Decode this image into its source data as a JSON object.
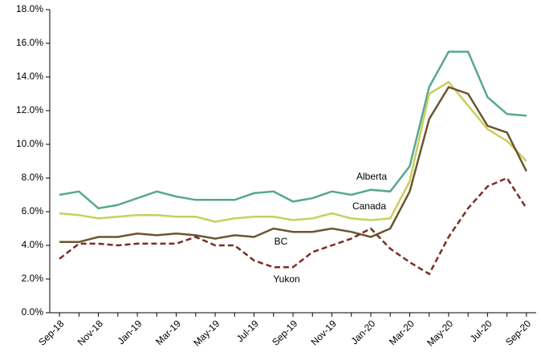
{
  "chart_data": {
    "type": "line",
    "categories": [
      "Sep-18",
      null,
      "Nov-18",
      null,
      "Jan-19",
      null,
      "Mar-19",
      null,
      "May-19",
      null,
      "Jul-19",
      null,
      "Sep-19",
      null,
      "Nov-19",
      null,
      "Jan-20",
      null,
      "Mar-20",
      null,
      "May-20",
      null,
      "Jul-20",
      null,
      "Sep-20"
    ],
    "ylim": [
      0,
      18
    ],
    "yticks": [
      {
        "value": 0,
        "label": "0.0%"
      },
      {
        "value": 2,
        "label": "2.0%"
      },
      {
        "value": 4,
        "label": "4.0%"
      },
      {
        "value": 6,
        "label": "6.0%"
      },
      {
        "value": 8,
        "label": "8.0%"
      },
      {
        "value": 10,
        "label": "10.0%"
      },
      {
        "value": 12,
        "label": "12.0%"
      },
      {
        "value": 14,
        "label": "14.0%"
      },
      {
        "value": 16,
        "label": "16.0%"
      },
      {
        "value": 18,
        "label": "18.0%"
      }
    ],
    "series": [
      {
        "name": "Alberta",
        "color": "#55a893",
        "dashed": false,
        "values": [
          7.0,
          7.2,
          6.2,
          6.4,
          6.8,
          7.2,
          6.9,
          6.7,
          6.7,
          6.7,
          7.1,
          7.2,
          6.6,
          6.8,
          7.2,
          7.0,
          7.3,
          7.2,
          8.7,
          13.4,
          15.5,
          15.5,
          12.8,
          11.8,
          11.7
        ]
      },
      {
        "name": "Canada",
        "color": "#c8cf5c",
        "dashed": false,
        "values": [
          5.9,
          5.8,
          5.6,
          5.7,
          5.8,
          5.8,
          5.7,
          5.7,
          5.4,
          5.6,
          5.7,
          5.7,
          5.5,
          5.6,
          5.9,
          5.6,
          5.5,
          5.6,
          7.8,
          13.0,
          13.7,
          12.3,
          10.9,
          10.2,
          9.0
        ]
      },
      {
        "name": "BC",
        "color": "#6b5530",
        "dashed": false,
        "values": [
          4.2,
          4.2,
          4.5,
          4.5,
          4.7,
          4.6,
          4.7,
          4.6,
          4.4,
          4.6,
          4.5,
          5.0,
          4.8,
          4.8,
          5.0,
          4.8,
          4.5,
          5.0,
          7.2,
          11.5,
          13.4,
          13.0,
          11.1,
          10.7,
          8.4
        ]
      },
      {
        "name": "Yukon",
        "color": "#7b2d26",
        "dashed": true,
        "values": [
          3.2,
          4.1,
          4.1,
          4.0,
          4.1,
          4.1,
          4.1,
          4.5,
          4.0,
          4.0,
          3.1,
          2.7,
          2.7,
          3.6,
          4.0,
          4.4,
          5.0,
          3.8,
          3.0,
          2.3,
          4.5,
          6.2,
          7.5,
          8.0,
          6.2
        ]
      }
    ]
  }
}
